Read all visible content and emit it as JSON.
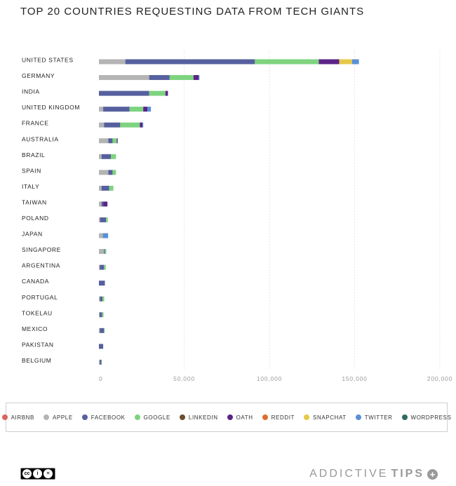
{
  "chart_data": {
    "type": "bar",
    "orientation": "horizontal",
    "stacked": true,
    "title": "TOP 20 COUNTRIES REQUESTING DATA FROM TECH GIANTS",
    "categories": [
      "UNITED STATES",
      "GERMANY",
      "INDIA",
      "UNITED KINGDOM",
      "FRANCE",
      "AUSTRALIA",
      "BRAZIL",
      "SPAIN",
      "ITALY",
      "TAIWAN",
      "POLAND",
      "JAPAN",
      "SINGAPORE",
      "ARGENTINA",
      "CANADA",
      "PORTUGAL",
      "TOKELAU",
      "MEXICO",
      "PAKISTAN",
      "BELGIUM"
    ],
    "xlim": [
      0,
      200000
    ],
    "xticks": [
      0,
      50000,
      100000,
      150000,
      200000
    ],
    "xtick_labels": [
      "0",
      "50,000",
      "100,000",
      "150,000",
      "200,000"
    ],
    "grid": true,
    "legend_position": "bottom",
    "series": [
      {
        "name": "AIRBNB",
        "color": "#d9685b",
        "values": [
          0,
          0,
          0,
          0,
          0,
          0,
          0,
          0,
          0,
          0,
          0,
          0,
          0,
          0,
          0,
          0,
          0,
          0,
          0,
          0
        ]
      },
      {
        "name": "APPLE",
        "color": "#b4b4b4",
        "values": [
          15500,
          29500,
          0,
          2500,
          3000,
          5500,
          1500,
          5500,
          1500,
          1500,
          700,
          2000,
          3000,
          500,
          0,
          600,
          400,
          500,
          0,
          500
        ]
      },
      {
        "name": "FACEBOOK",
        "color": "#56609e",
        "values": [
          76000,
          12000,
          29500,
          15500,
          9500,
          2500,
          5500,
          2500,
          4500,
          1000,
          3500,
          200,
          500,
          2500,
          3500,
          1500,
          1500,
          2500,
          2500,
          1000
        ]
      },
      {
        "name": "GOOGLE",
        "color": "#7ed37f",
        "values": [
          37500,
          14000,
          9500,
          8000,
          11500,
          2500,
          3000,
          2000,
          2500,
          0,
          1000,
          200,
          800,
          1000,
          0,
          1000,
          800,
          400,
          0,
          200
        ]
      },
      {
        "name": "LINKEDIN",
        "color": "#6b4d2e",
        "values": [
          0,
          0,
          0,
          0,
          0,
          0,
          0,
          0,
          0,
          0,
          0,
          0,
          0,
          0,
          0,
          0,
          0,
          0,
          0,
          0
        ]
      },
      {
        "name": "OATH",
        "color": "#5b2486",
        "values": [
          12000,
          3000,
          1500,
          2500,
          1500,
          500,
          0,
          0,
          0,
          2500,
          0,
          0,
          0,
          0,
          0,
          0,
          0,
          0,
          0,
          0
        ]
      },
      {
        "name": "REDDIT",
        "color": "#de6e2e",
        "values": [
          0,
          0,
          0,
          0,
          0,
          0,
          0,
          0,
          0,
          0,
          0,
          0,
          0,
          0,
          0,
          0,
          0,
          0,
          0,
          0
        ]
      },
      {
        "name": "SNAPCHAT",
        "color": "#e5c948",
        "values": [
          7500,
          0,
          0,
          0,
          0,
          0,
          0,
          0,
          0,
          0,
          0,
          0,
          0,
          0,
          0,
          0,
          0,
          0,
          0,
          0
        ]
      },
      {
        "name": "TWITTER",
        "color": "#5a8fd7",
        "values": [
          4000,
          500,
          0,
          2000,
          500,
          0,
          0,
          0,
          0,
          0,
          0,
          3000,
          0,
          0,
          0,
          0,
          0,
          0,
          0,
          0
        ]
      },
      {
        "name": "WORDPRESS",
        "color": "#2f6b61",
        "values": [
          0,
          0,
          0,
          0,
          0,
          0,
          0,
          0,
          0,
          0,
          0,
          0,
          0,
          0,
          0,
          0,
          0,
          0,
          0,
          0
        ]
      }
    ]
  },
  "branding": {
    "cc_glyphs": [
      "cc",
      "i",
      "="
    ],
    "brand_light": "ADDICTIVE",
    "brand_bold": "TIPS",
    "brand_plus": "+"
  }
}
